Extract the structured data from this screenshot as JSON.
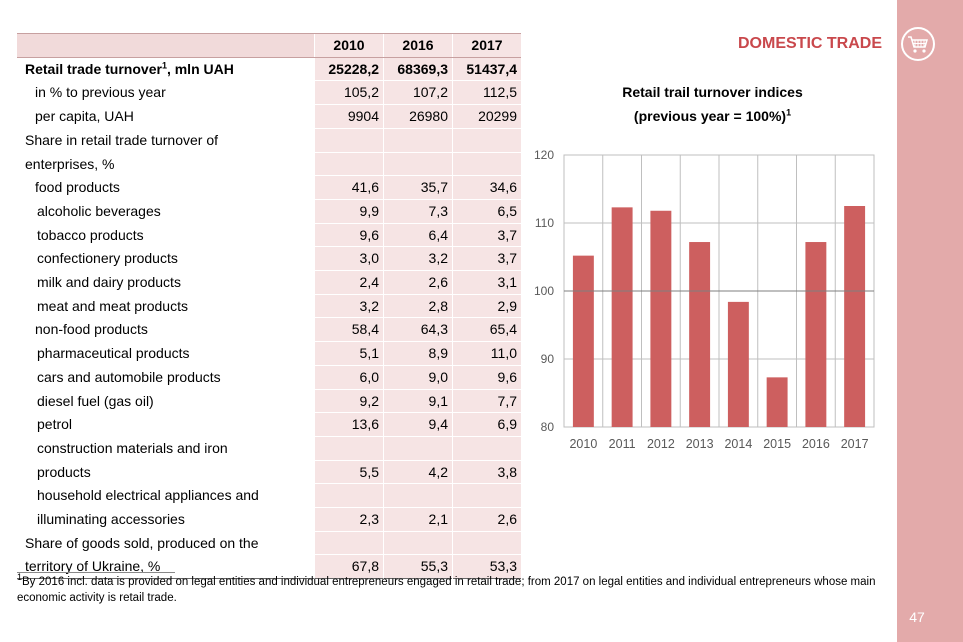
{
  "header": {
    "section_title": "DOMESTIC TRADE",
    "page_number": "47",
    "icon": "shopping-cart-icon"
  },
  "table": {
    "columns": [
      "2010",
      "2016",
      "2017"
    ],
    "rows": [
      {
        "label": "Retail trade turnover",
        "sup": "1",
        "label_suffix": ", mln UAH",
        "values": [
          "25228,2",
          "68369,3",
          "51437,4"
        ],
        "bold": true
      },
      {
        "label": "in % to previous year",
        "values": [
          "105,2",
          "107,2",
          "112,5"
        ]
      },
      {
        "label": "per capita, UAH",
        "values": [
          "9904",
          "26980",
          "20299"
        ]
      },
      {
        "label": "Share in retail trade turnover of",
        "values": [
          "",
          "",
          ""
        ]
      },
      {
        "label": "enterprises, %",
        "values": [
          "",
          "",
          ""
        ]
      },
      {
        "label": "food products",
        "values": [
          "41,6",
          "35,7",
          "34,6"
        ]
      },
      {
        "label": "alcoholic beverages",
        "values": [
          "9,9",
          "7,3",
          "6,5"
        ]
      },
      {
        "label": "tobacco products",
        "values": [
          "9,6",
          "6,4",
          "3,7"
        ]
      },
      {
        "label": "confectionery products",
        "values": [
          "3,0",
          "3,2",
          "3,7"
        ]
      },
      {
        "label": "milk and dairy products",
        "values": [
          "2,4",
          "2,6",
          "3,1"
        ]
      },
      {
        "label": "meat and meat products",
        "values": [
          "3,2",
          "2,8",
          "2,9"
        ]
      },
      {
        "label": "non-food products",
        "values": [
          "58,4",
          "64,3",
          "65,4"
        ]
      },
      {
        "label": "pharmaceutical products",
        "values": [
          "5,1",
          "8,9",
          "11,0"
        ]
      },
      {
        "label": "cars and automobile products",
        "values": [
          "6,0",
          "9,0",
          "9,6"
        ]
      },
      {
        "label": "diesel fuel (gas oil)",
        "values": [
          "9,2",
          "9,1",
          "7,7"
        ]
      },
      {
        "label": "petrol",
        "values": [
          "13,6",
          "9,4",
          "6,9"
        ]
      },
      {
        "label": "construction materials and iron",
        "values": [
          "",
          "",
          ""
        ]
      },
      {
        "label": "products",
        "values": [
          "5,5",
          "4,2",
          "3,8"
        ]
      },
      {
        "label": "household electrical appliances and",
        "values": [
          "",
          "",
          ""
        ]
      },
      {
        "label": "illuminating accessories",
        "values": [
          "2,3",
          "2,1",
          "2,6"
        ]
      },
      {
        "label": "Share of goods sold, produced on the",
        "values": [
          "",
          "",
          ""
        ]
      },
      {
        "label": "territory of Ukraine, %",
        "values": [
          "67,8",
          "55,3",
          "53,3"
        ]
      }
    ]
  },
  "chart_data": {
    "type": "bar",
    "title_line1": "Retail trail turnover indices",
    "title_line2": "(previous year = 100%)",
    "title_sup": "1",
    "categories": [
      "2010",
      "2011",
      "2012",
      "2013",
      "2014",
      "2015",
      "2016",
      "2017"
    ],
    "values": [
      105.2,
      112.3,
      111.8,
      107.2,
      98.4,
      87.3,
      107.2,
      112.5
    ],
    "ylim": [
      80,
      120
    ],
    "yticks": [
      80,
      90,
      100,
      110,
      120
    ],
    "reference_line": 100,
    "grid": true,
    "bar_color": "#cd5f5f",
    "axis_color": "#bfbfbf"
  },
  "footnote": {
    "sup": "1",
    "text": "By 2016 incl. data is provided on legal entities and individual entrepreneurs engaged in retail trade; from 2017 on legal entities and individual entrepreneurs whose main economic activity is retail trade."
  },
  "colors": {
    "accent": "#c9484c",
    "sidebar": "#e3aaaa",
    "table_fill": "#f6e4e4"
  }
}
